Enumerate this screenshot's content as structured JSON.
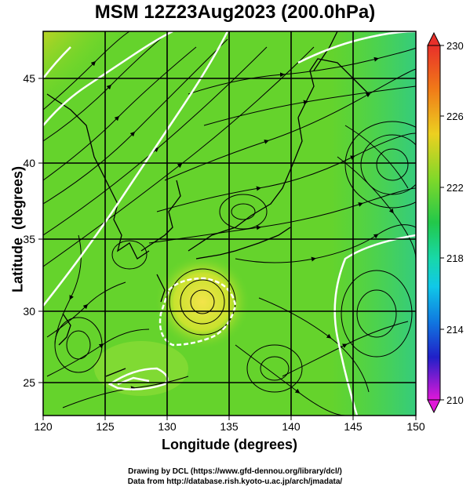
{
  "title": "MSM 12Z23Aug2023 (200.0hPa)",
  "x_axis": {
    "label": "Longitude (degrees)",
    "ticks": [
      "120",
      "125",
      "130",
      "135",
      "140",
      "145",
      "150"
    ]
  },
  "y_axis": {
    "label": "Latitude  (degrees)",
    "ticks": [
      "25",
      "30",
      "35",
      "40",
      "45"
    ]
  },
  "colorbar": {
    "ticks": [
      "230",
      "226",
      "222",
      "218",
      "214",
      "210"
    ],
    "min": 210,
    "max": 230
  },
  "map": {
    "lon_range": [
      120,
      150
    ],
    "lat_range": [
      22.5,
      48
    ],
    "grid_lon": [
      125,
      130,
      135,
      140,
      145
    ],
    "grid_lat": [
      25,
      30,
      35,
      40,
      45
    ]
  },
  "credits": {
    "drawing": "Drawing by DCL (https://www.gfd-dennou.org/library/dcl/)",
    "data": "Data from http://database.rish.kyoto-u.ac.jp/arch/jmadata/"
  }
}
